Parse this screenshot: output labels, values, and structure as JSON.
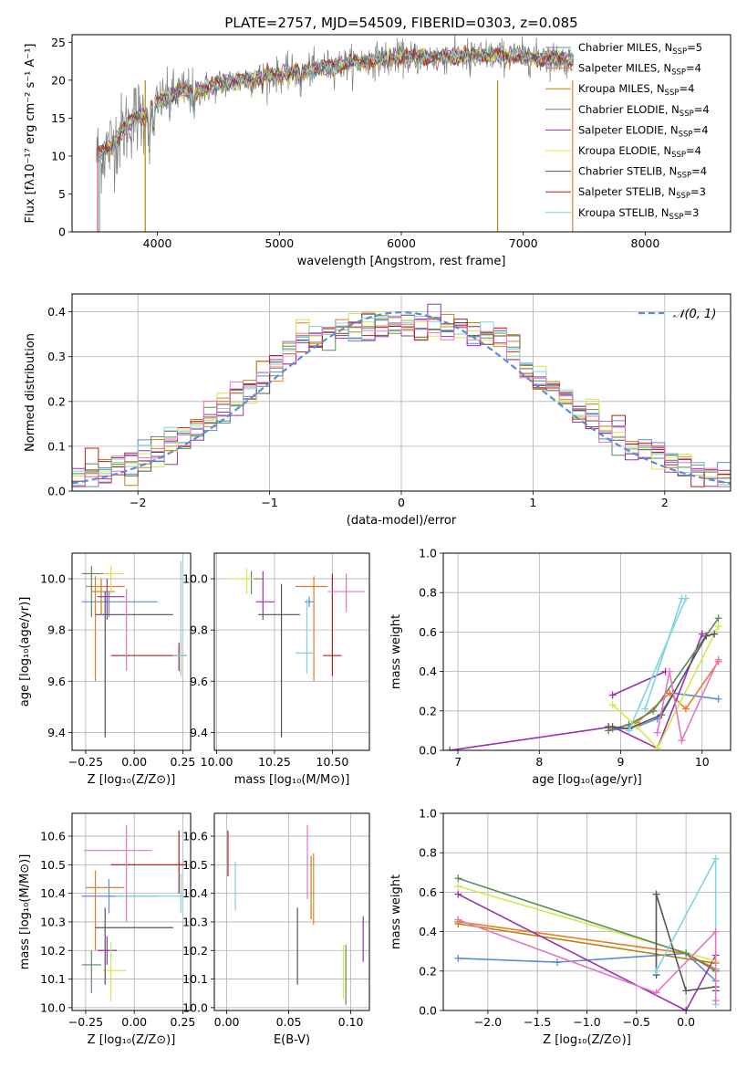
{
  "figure_title": "PLATE=2757, MJD=54509, FIBERID=0303, z=0.085",
  "chart_data": [
    {
      "id": "spectrum",
      "type": "line",
      "xlabel": "wavelength [Angstrom, rest frame]",
      "ylabel": "Flux [fλ10⁻¹⁷ erg cm⁻² s⁻¹ A⁻¹]",
      "xlim": [
        3300,
        8700
      ],
      "ylim": [
        0,
        26
      ],
      "xticks": [
        4000,
        5000,
        6000,
        7000,
        8000
      ],
      "yticks": [
        0,
        5,
        10,
        15,
        20,
        25
      ],
      "legend_position": "top-right",
      "series": [
        {
          "name": "Chabrier MILES, N",
          "sub": "SSP",
          "suffix": "=5",
          "color": "#5b8bd9"
        },
        {
          "name": "Salpeter MILES, N",
          "sub": "SSP",
          "suffix": "=4",
          "color": "#e87c2a"
        },
        {
          "name": "Kroupa MILES, N",
          "sub": "SSP",
          "suffix": "=4",
          "color": "#b8860b"
        },
        {
          "name": "Chabrier ELODIE, N",
          "sub": "SSP",
          "suffix": "=4",
          "color": "#5a8a5a"
        },
        {
          "name": "Salpeter ELODIE, N",
          "sub": "SSP",
          "suffix": "=4",
          "color": "#9b30b0"
        },
        {
          "name": "Kroupa ELODIE, N",
          "sub": "SSP",
          "suffix": "=4",
          "color": "#d4e84a"
        },
        {
          "name": "Chabrier STELIB, N",
          "sub": "SSP",
          "suffix": "=4",
          "color": "#555555"
        },
        {
          "name": "Salpeter STELIB, N",
          "sub": "SSP",
          "suffix": "=3",
          "color": "#b02020"
        },
        {
          "name": "Kroupa STELIB, N",
          "sub": "SSP",
          "suffix": "=3",
          "color": "#7fd4e0"
        }
      ],
      "continuum": {
        "x": [
          3500,
          3600,
          3700,
          3800,
          3900,
          4000,
          4100,
          4200,
          4300,
          4400,
          4500,
          4700,
          4900,
          5100,
          5300,
          5500,
          5700,
          5900,
          6100,
          6300,
          6500,
          6700,
          6900,
          7100,
          7300,
          7400
        ],
        "y": [
          10,
          11,
          13,
          15,
          15.5,
          17,
          18,
          18.5,
          18.5,
          19,
          19.5,
          20,
          20.5,
          21,
          21.5,
          22,
          22.5,
          23,
          23,
          23,
          23.2,
          23.3,
          23.2,
          23,
          22.8,
          22.5
        ]
      }
    },
    {
      "id": "residuals",
      "type": "bar",
      "xlabel": "(data-model)/error",
      "ylabel": "Normed distribution",
      "xlim": [
        -2.5,
        2.5
      ],
      "ylim": [
        0,
        0.44
      ],
      "xticks": [
        -2,
        -1,
        0,
        1,
        2
      ],
      "yticks": [
        0.0,
        0.1,
        0.2,
        0.3,
        0.4
      ],
      "legend_position": "top-right",
      "reference": {
        "name": "𝒩(0, 1)",
        "color": "#5b8bd9",
        "mean": 0,
        "sigma": 1
      }
    },
    {
      "id": "age_vs_Z",
      "type": "scatter",
      "xlabel": "Z [log₁₀(Z/Z⊙)]",
      "ylabel": "age  [log₁₀(age/yr)]",
      "xlim": [
        -0.32,
        0.29
      ],
      "ylim": [
        9.33,
        10.1
      ],
      "xticks": [
        -0.25,
        0.0,
        0.25
      ],
      "yticks": [
        9.4,
        9.6,
        9.8,
        10.0
      ],
      "points": [
        {
          "x": -0.13,
          "y": 9.91,
          "xerr": [
            0.14,
            0.25
          ],
          "yerr": [
            0.06,
            0.04
          ],
          "color": "#5b8bd9"
        },
        {
          "x": -0.2,
          "y": 9.97,
          "xerr": [
            0.05,
            0.15
          ],
          "yerr": [
            0.37,
            0.04
          ],
          "color": "#e87c2a"
        },
        {
          "x": -0.17,
          "y": 9.95,
          "xerr": [
            0.05,
            0.07
          ],
          "yerr": [
            0.09,
            0.05
          ],
          "color": "#b8860b"
        },
        {
          "x": -0.22,
          "y": 10.02,
          "xerr": [
            0.05,
            0.1
          ],
          "yerr": [
            0.17,
            0.03
          ],
          "color": "#5a8a5a"
        },
        {
          "x": -0.14,
          "y": 9.93,
          "xerr": [
            0.05,
            0.09
          ],
          "yerr": [
            0.09,
            0.07
          ],
          "color": "#9b30b0"
        },
        {
          "x": -0.12,
          "y": 10.02,
          "xerr": [
            0.04,
            0.07
          ],
          "yerr": [
            0.08,
            0.03
          ],
          "color": "#d4e84a"
        },
        {
          "x": -0.15,
          "y": 9.86,
          "xerr": [
            0.05,
            0.35
          ],
          "yerr": [
            0.48,
            0.09
          ],
          "color": "#555555"
        },
        {
          "x": 0.23,
          "y": 9.7,
          "xerr": [
            0.35,
            0.04
          ],
          "yerr": [
            0.06,
            0.05
          ],
          "color": "#b02020"
        },
        {
          "x": 0.24,
          "y": 9.7,
          "xerr": [
            0.04,
            0.03
          ],
          "yerr": [
            0.08,
            0.37
          ],
          "color": "#7fd4e0"
        },
        {
          "x": -0.04,
          "y": 9.85,
          "xerr": [
            0.0,
            0.0
          ],
          "yerr": [
            0.21,
            0.11
          ],
          "color": "#e377c2"
        }
      ]
    },
    {
      "id": "age_vs_mass",
      "type": "scatter",
      "xlabel": "mass [log₁₀(M/M⊙)]",
      "ylabel": "",
      "xlim": [
        9.99,
        10.66
      ],
      "ylim": [
        9.33,
        10.1
      ],
      "xticks": [
        10.0,
        10.25,
        10.5
      ],
      "yticks": [
        9.4,
        9.6,
        9.8,
        10.0
      ],
      "points": [
        {
          "x": 10.4,
          "y": 9.91,
          "xerr": [
            0.02,
            0.02
          ],
          "yerr": [
            0.02,
            0.02
          ],
          "color": "#5b8bd9"
        },
        {
          "x": 10.42,
          "y": 9.97,
          "xerr": [
            0.08,
            0.06
          ],
          "yerr": [
            0.37,
            0.04
          ],
          "color": "#e87c2a"
        },
        {
          "x": 10.15,
          "y": 10.0,
          "xerr": [
            0.05,
            0.05
          ],
          "yerr": [
            0.06,
            0.03
          ],
          "color": "#5a8a5a"
        },
        {
          "x": 10.2,
          "y": 9.91,
          "xerr": [
            0.03,
            0.05
          ],
          "yerr": [
            0.07,
            0.12
          ],
          "color": "#9b30b0"
        },
        {
          "x": 10.13,
          "y": 10.0,
          "xerr": [
            0.08,
            0.03
          ],
          "yerr": [
            0.06,
            0.04
          ],
          "color": "#d4e84a"
        },
        {
          "x": 10.28,
          "y": 9.86,
          "xerr": [
            0.1,
            0.08
          ],
          "yerr": [
            0.48,
            0.12
          ],
          "color": "#555555"
        },
        {
          "x": 10.5,
          "y": 9.7,
          "xerr": [
            0.04,
            0.04
          ],
          "yerr": [
            0.08,
            0.32
          ],
          "color": "#b02020"
        },
        {
          "x": 10.39,
          "y": 9.71,
          "xerr": [
            0.05,
            0.03
          ],
          "yerr": [
            0.08,
            0.21
          ],
          "color": "#7fd4e0"
        },
        {
          "x": 10.56,
          "y": 9.95,
          "xerr": [
            0.08,
            0.08
          ],
          "yerr": [
            0.08,
            0.07
          ],
          "color": "#e377c2"
        }
      ]
    },
    {
      "id": "weight_vs_age",
      "type": "line",
      "xlabel": "age  [log₁₀(age/yr)]",
      "ylabel": "mass weight",
      "xlim": [
        6.82,
        10.35
      ],
      "ylim": [
        0,
        1
      ],
      "xticks": [
        7,
        8,
        9,
        10
      ],
      "yticks": [
        0.0,
        0.2,
        0.4,
        0.6,
        0.8,
        1.0
      ],
      "series": [
        {
          "color": "#5b8bd9",
          "x": [
            8.85,
            9.2,
            9.45,
            9.65,
            10.2
          ],
          "y": [
            0.1,
            0.12,
            0.16,
            0.29,
            0.26
          ]
        },
        {
          "color": "#e87c2a",
          "x": [
            8.9,
            9.2,
            9.6,
            9.8,
            10.2
          ],
          "y": [
            0.11,
            0.14,
            0.29,
            0.21,
            0.45
          ]
        },
        {
          "color": "#9b30b0",
          "x": [
            6.9,
            8.9,
            9.45,
            10.0
          ],
          "y": [
            0.0,
            0.12,
            0.01,
            0.59
          ]
        },
        {
          "color": "#9b30b0",
          "x": [
            8.9,
            9.55
          ],
          "y": [
            0.28,
            0.4
          ]
        },
        {
          "color": "#d4e84a",
          "x": [
            8.9,
            9.2,
            9.45,
            10.2
          ],
          "y": [
            0.23,
            0.12,
            0.01,
            0.63
          ]
        },
        {
          "color": "#5a8a5a",
          "x": [
            8.85,
            9.1,
            9.4,
            10.2
          ],
          "y": [
            0.1,
            0.13,
            0.2,
            0.67
          ]
        },
        {
          "color": "#555555",
          "x": [
            8.85,
            9.1,
            9.5,
            10.05,
            10.15
          ],
          "y": [
            0.12,
            0.11,
            0.18,
            0.58,
            0.59
          ]
        },
        {
          "color": "#7fd4e0",
          "x": [
            9.1,
            9.8
          ],
          "y": [
            0.1,
            0.77
          ]
        },
        {
          "color": "#7fd4e0",
          "x": [
            9.3,
            9.75
          ],
          "y": [
            0.21,
            0.77
          ]
        },
        {
          "color": "#e377c2",
          "x": [
            9.45,
            9.6,
            9.75,
            10.2
          ],
          "y": [
            0.09,
            0.4,
            0.05,
            0.46
          ]
        }
      ]
    },
    {
      "id": "mass_vs_Z",
      "type": "scatter",
      "xlabel": "Z [log₁₀(Z/Z⊙)]",
      "ylabel": "mass [log₁₀(M/M⊙)]",
      "xlim": [
        -0.32,
        0.29
      ],
      "ylim": [
        9.99,
        10.68
      ],
      "xticks": [
        -0.25,
        0.0,
        0.25
      ],
      "yticks": [
        10.0,
        10.1,
        10.2,
        10.3,
        10.4,
        10.5,
        10.6
      ],
      "points": [
        {
          "x": -0.13,
          "y": 10.39,
          "xerr": [
            0.14,
            0.25
          ],
          "yerr": [
            0.06,
            0.06
          ],
          "color": "#5b8bd9"
        },
        {
          "x": -0.2,
          "y": 10.42,
          "xerr": [
            0.05,
            0.15
          ],
          "yerr": [
            0.22,
            0.06
          ],
          "color": "#e87c2a"
        },
        {
          "x": -0.22,
          "y": 10.15,
          "xerr": [
            0.05,
            0.05
          ],
          "yerr": [
            0.1,
            0.05
          ],
          "color": "#5a8a5a"
        },
        {
          "x": -0.14,
          "y": 10.2,
          "xerr": [
            0.05,
            0.05
          ],
          "yerr": [
            0.05,
            0.05
          ],
          "color": "#9b30b0"
        },
        {
          "x": -0.12,
          "y": 10.13,
          "xerr": [
            0.04,
            0.08
          ],
          "yerr": [
            0.11,
            0.1
          ],
          "color": "#d4e84a"
        },
        {
          "x": -0.15,
          "y": 10.28,
          "xerr": [
            0.05,
            0.35
          ],
          "yerr": [
            0.2,
            0.07
          ],
          "color": "#555555"
        },
        {
          "x": 0.23,
          "y": 10.5,
          "xerr": [
            0.35,
            0.04
          ],
          "yerr": [
            0.1,
            0.12
          ],
          "color": "#b02020"
        },
        {
          "x": 0.24,
          "y": 10.39,
          "xerr": [
            0.34,
            0.03
          ],
          "yerr": [
            0.06,
            0.08
          ],
          "color": "#7fd4e0"
        },
        {
          "x": -0.04,
          "y": 10.55,
          "xerr": [
            0.22,
            0.13
          ],
          "yerr": [
            0.25,
            0.09
          ],
          "color": "#e377c2"
        }
      ]
    },
    {
      "id": "mass_vs_ebv",
      "type": "scatter",
      "xlabel": "E(B-V)",
      "ylabel": "",
      "xlim": [
        -0.01,
        0.115
      ],
      "ylim": [
        9.99,
        10.68
      ],
      "xticks": [
        0.0,
        0.05,
        0.1
      ],
      "yticks": [
        10.0,
        10.1,
        10.2,
        10.3,
        10.4,
        10.5,
        10.6
      ],
      "points": [
        {
          "x": 0.001,
          "y": 10.5,
          "xerr": [
            0,
            0
          ],
          "yerr": [
            0.04,
            0.12
          ],
          "color": "#b02020"
        },
        {
          "x": 0.007,
          "y": 10.42,
          "xerr": [
            0,
            0
          ],
          "yerr": [
            0.08,
            0.09
          ],
          "color": "#7fd4e0"
        },
        {
          "x": 0.057,
          "y": 10.2,
          "xerr": [
            0,
            0
          ],
          "yerr": [
            0.12,
            0.15
          ],
          "color": "#555555"
        },
        {
          "x": 0.065,
          "y": 10.5,
          "xerr": [
            0,
            0
          ],
          "yerr": [
            0.12,
            0.14
          ],
          "color": "#e377c2"
        },
        {
          "x": 0.068,
          "y": 10.41,
          "xerr": [
            0,
            0
          ],
          "yerr": [
            0.1,
            0.12
          ],
          "color": "#b8860b"
        },
        {
          "x": 0.07,
          "y": 10.42,
          "xerr": [
            0,
            0
          ],
          "yerr": [
            0.13,
            0.12
          ],
          "color": "#e87c2a"
        },
        {
          "x": 0.094,
          "y": 10.13,
          "xerr": [
            0,
            0
          ],
          "yerr": [
            0.1,
            0.09
          ],
          "color": "#d4e84a"
        },
        {
          "x": 0.096,
          "y": 10.11,
          "xerr": [
            0,
            0
          ],
          "yerr": [
            0.1,
            0.11
          ],
          "color": "#5a8a5a"
        },
        {
          "x": 0.11,
          "y": 10.24,
          "xerr": [
            0,
            0
          ],
          "yerr": [
            0.08,
            0.08
          ],
          "color": "#9b30b0"
        }
      ]
    },
    {
      "id": "weight_vs_Z",
      "type": "line",
      "xlabel": "Z [log₁₀(Z/Z⊙)]",
      "ylabel": "mass weight",
      "xlim": [
        -2.45,
        0.45
      ],
      "ylim": [
        0,
        1
      ],
      "xticks": [
        -2.0,
        -1.5,
        -1.0,
        -0.5,
        0.0
      ],
      "yticks": [
        0.0,
        0.2,
        0.4,
        0.6,
        0.8,
        1.0
      ],
      "series": [
        {
          "color": "#5b8bd9",
          "x": [
            -2.3,
            -1.3,
            0.0,
            0.3
          ],
          "y": [
            0.265,
            0.245,
            0.29,
            0.15
          ]
        },
        {
          "color": "#e87c2a",
          "x": [
            -2.3,
            0.0,
            0.3
          ],
          "y": [
            0.45,
            0.29,
            0.21
          ]
        },
        {
          "color": "#b8860b",
          "x": [
            -2.3,
            0.3
          ],
          "y": [
            0.44,
            0.24
          ]
        },
        {
          "color": "#9b30b0",
          "x": [
            -2.3,
            0.0,
            0.3
          ],
          "y": [
            0.59,
            0.0,
            0.28
          ]
        },
        {
          "color": "#d4e84a",
          "x": [
            -2.3,
            0.3
          ],
          "y": [
            0.63,
            0.25
          ]
        },
        {
          "color": "#5a8a5a",
          "x": [
            -2.3,
            0.0,
            0.3
          ],
          "y": [
            0.67,
            0.29,
            0.2
          ]
        },
        {
          "color": "#555555",
          "x": [
            -0.3,
            -0.3,
            0.0,
            0.3,
            0.3
          ],
          "y": [
            0.18,
            0.59,
            0.1,
            0.12,
            0.1
          ]
        },
        {
          "color": "#7fd4e0",
          "x": [
            -0.3,
            0.3,
            0.3
          ],
          "y": [
            0.2,
            0.77,
            0.03
          ]
        },
        {
          "color": "#e377c2",
          "x": [
            -2.3,
            -0.3,
            0.3,
            0.3
          ],
          "y": [
            0.46,
            0.09,
            0.4,
            0.05
          ]
        }
      ]
    }
  ]
}
